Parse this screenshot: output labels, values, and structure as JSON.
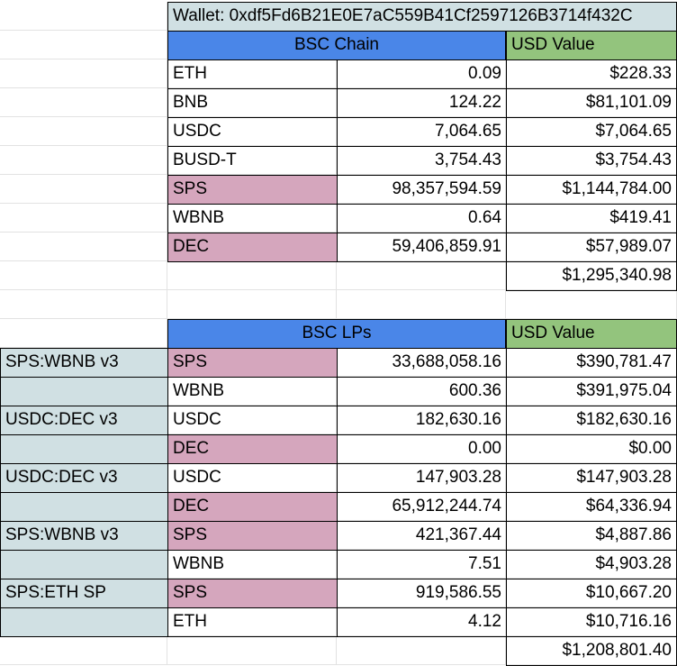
{
  "wallet_label": "Wallet: 0xdf5Fd6B21E0E7aC559B41Cf2597126B3714f432C",
  "chain_table": {
    "header_name": "BSC Chain",
    "header_usd": "USD Value",
    "rows": [
      {
        "token": "ETH",
        "amount": "0.09",
        "usd": "$228.33",
        "highlight": false
      },
      {
        "token": "BNB",
        "amount": "124.22",
        "usd": "$81,101.09",
        "highlight": false
      },
      {
        "token": "USDC",
        "amount": "7,064.65",
        "usd": "$7,064.65",
        "highlight": false
      },
      {
        "token": "BUSD-T",
        "amount": "3,754.43",
        "usd": "$3,754.43",
        "highlight": false
      },
      {
        "token": "SPS",
        "amount": "98,357,594.59",
        "usd": "$1,144,784.00",
        "highlight": true
      },
      {
        "token": "WBNB",
        "amount": "0.64",
        "usd": "$419.41",
        "highlight": false
      },
      {
        "token": "DEC",
        "amount": "59,406,859.91",
        "usd": "$57,989.07",
        "highlight": true
      }
    ],
    "total": "$1,295,340.98"
  },
  "lp_table": {
    "header_name": "BSC LPs",
    "header_usd": "USD Value",
    "rows": [
      {
        "pool": "SPS:WBNB v3",
        "token": "SPS",
        "amount": "33,688,058.16",
        "usd": "$390,781.47",
        "highlight": true
      },
      {
        "pool": "",
        "token": "WBNB",
        "amount": "600.36",
        "usd": "$391,975.04",
        "highlight": false
      },
      {
        "pool": "USDC:DEC v3",
        "token": "USDC",
        "amount": "182,630.16",
        "usd": "$182,630.16",
        "highlight": false
      },
      {
        "pool": "",
        "token": "DEC",
        "amount": "0.00",
        "usd": "$0.00",
        "highlight": true
      },
      {
        "pool": "USDC:DEC v3",
        "token": "USDC",
        "amount": "147,903.28",
        "usd": "$147,903.28",
        "highlight": false
      },
      {
        "pool": "",
        "token": "DEC",
        "amount": "65,912,244.74",
        "usd": "$64,336.94",
        "highlight": true
      },
      {
        "pool": "SPS:WBNB v3",
        "token": "SPS",
        "amount": "421,367.44",
        "usd": "$4,887.86",
        "highlight": true
      },
      {
        "pool": "",
        "token": "WBNB",
        "amount": "7.51",
        "usd": "$4,903.28",
        "highlight": false
      },
      {
        "pool": "SPS:ETH SP",
        "token": "SPS",
        "amount": "919,586.55",
        "usd": "$10,667.20",
        "highlight": true
      },
      {
        "pool": "",
        "token": "ETH",
        "amount": "4.12",
        "usd": "$10,716.16",
        "highlight": false
      }
    ],
    "total": "$1,208,801.40"
  },
  "colors": {
    "header_blue": "#4a86e8",
    "header_green": "#93c47d",
    "highlight_pink": "#d5a6bd",
    "pool_slate": "#d0e0e3"
  }
}
